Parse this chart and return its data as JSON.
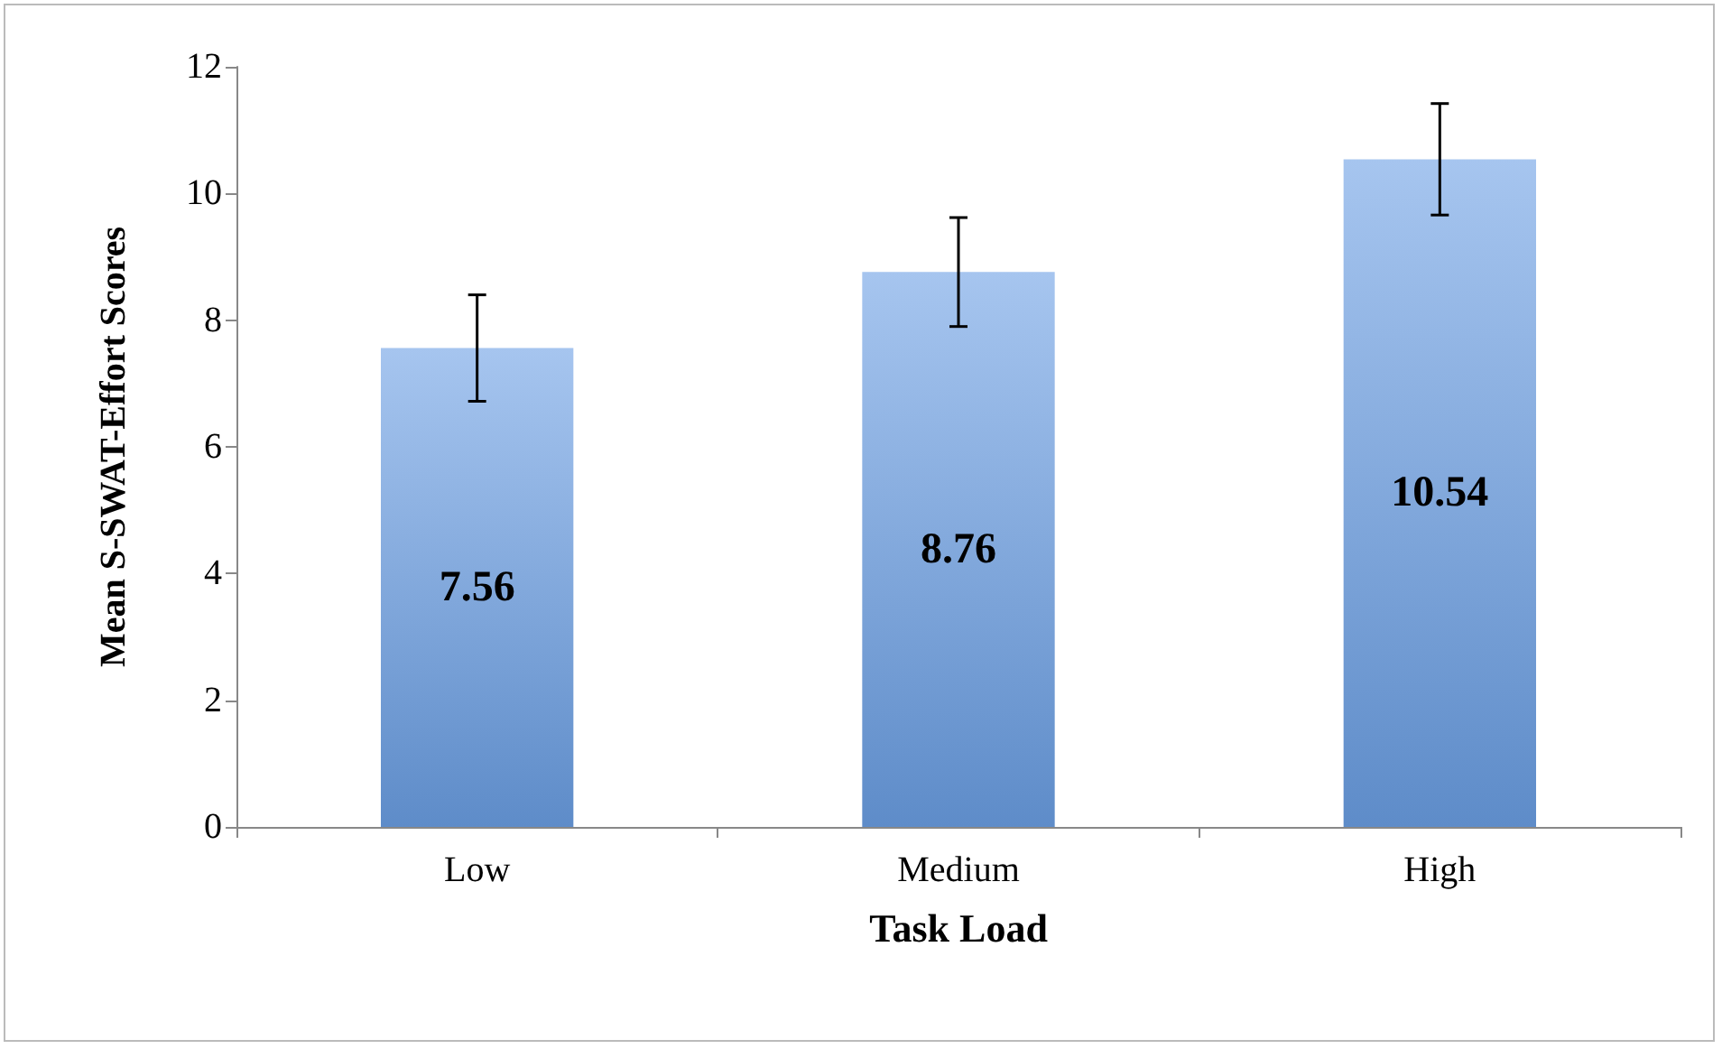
{
  "chart_data": {
    "type": "bar",
    "xlabel": "Task Load",
    "ylabel": "Mean S-SWAT-Effort Scores",
    "categories": [
      "Low",
      "Medium",
      "High"
    ],
    "values": [
      7.56,
      8.76,
      10.54
    ],
    "errors": [
      [
        6.72,
        8.4
      ],
      [
        7.9,
        9.62
      ],
      [
        9.66,
        11.42
      ]
    ],
    "color": "#6b9fe4",
    "ylim": [
      0,
      12
    ],
    "yticks": [
      0,
      2,
      4,
      6,
      8,
      10,
      12
    ],
    "data_labels": true,
    "grid": false
  }
}
